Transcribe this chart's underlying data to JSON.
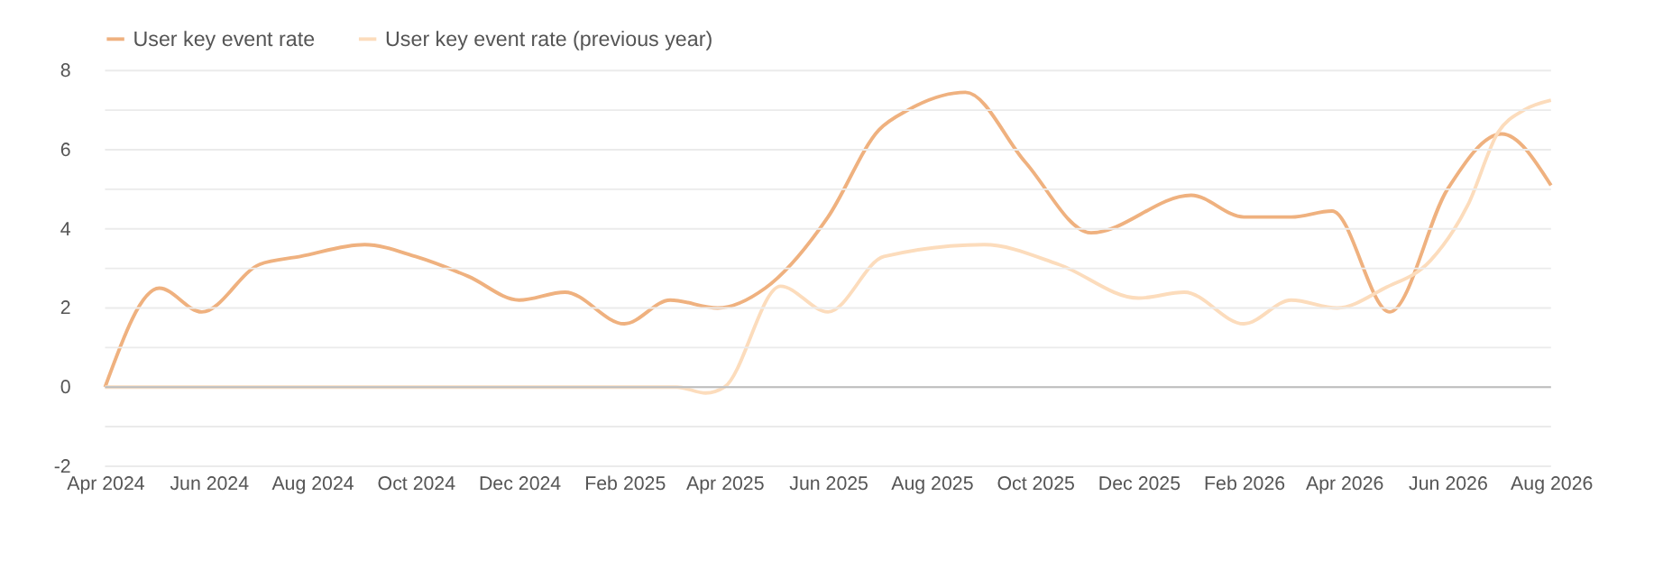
{
  "chart_data": {
    "type": "line",
    "legend": "top left",
    "grid": "y",
    "marker": "none",
    "line_style": "solid",
    "ylim": [
      -2,
      8
    ],
    "yticks": [
      -2,
      {
        "value": -1,
        "label": null
      },
      0,
      {
        "value": 1,
        "label": null
      },
      2,
      {
        "value": 3,
        "label": null
      },
      4,
      {
        "value": 5,
        "label": null
      },
      6,
      {
        "value": 7,
        "label": null
      },
      8
    ],
    "xlim": [
      "2024-04-01",
      "2026-08-01"
    ],
    "xticks": [
      {
        "value": "2024-04",
        "label": "Apr 2024"
      },
      {
        "value": "2024-06",
        "label": "Jun 2024"
      },
      {
        "value": "2024-08",
        "label": "Aug 2024"
      },
      {
        "value": "2024-10",
        "label": "Oct 2024"
      },
      {
        "value": "2024-12",
        "label": "Dec 2024"
      },
      {
        "value": "2025-02",
        "label": "Feb 2025"
      },
      {
        "value": "2025-04",
        "label": "Apr 2025"
      },
      {
        "value": "2025-06",
        "label": "Jun 2025"
      },
      {
        "value": "2025-08",
        "label": "Aug 2025"
      },
      {
        "value": "2025-10",
        "label": "Oct 2025"
      },
      {
        "value": "2025-12",
        "label": "Dec 2025"
      },
      {
        "value": "2026-02",
        "label": "Feb 2026"
      },
      {
        "value": "2026-04",
        "label": "Apr 2026"
      },
      {
        "value": "2026-06",
        "label": "Jun 2026"
      },
      {
        "value": "2026-08",
        "label": "Aug 2026"
      }
    ],
    "ref_lines": [
      {
        "axis": "y",
        "value": 0,
        "color": "#bdbdbd"
      }
    ],
    "series": [
      {
        "name": "User key event rate",
        "color": "#efb17f",
        "x": [
          "2024-04-01",
          "2024-05-03",
          "2024-05-28",
          "2024-07-01",
          "2024-07-25",
          "2024-09-01",
          "2024-10-01",
          "2024-11-01",
          "2024-12-01",
          "2024-12-28",
          "2025-02-01",
          "2025-02-28",
          "2025-03-28",
          "2025-04-25",
          "2025-06-01",
          "2025-07-01",
          "2025-07-18",
          "2025-08-21",
          "2025-09-25",
          "2025-11-03",
          "2026-01-01",
          "2026-02-01",
          "2026-03-01",
          "2026-03-25",
          "2026-04-28",
          "2026-06-01",
          "2026-07-03",
          "2026-08-01"
        ],
        "values": [
          0,
          2.5,
          1.9,
          3.1,
          3.3,
          3.6,
          3.3,
          2.8,
          2.2,
          2.4,
          1.6,
          2.2,
          2.0,
          2.5,
          4.3,
          6.5,
          7.0,
          7.45,
          5.7,
          3.9,
          4.85,
          4.3,
          4.3,
          4.45,
          1.9,
          5.0,
          6.4,
          5.1
        ]
      },
      {
        "name": "User key event rate (previous year)",
        "color": "#fcdcbc",
        "x": [
          "2024-04-01",
          "2024-10-01",
          "2025-03-04",
          "2025-03-21",
          "2025-04-01",
          "2025-05-04",
          "2025-06-01",
          "2025-07-04",
          "2025-09-01",
          "2025-10-15",
          "2025-12-01",
          "2025-12-28",
          "2026-02-01",
          "2026-03-01",
          "2026-03-28",
          "2026-04-25",
          "2026-05-22",
          "2026-06-13",
          "2026-07-01",
          "2026-07-16",
          "2026-08-01"
        ],
        "values": [
          0,
          0,
          0,
          -0.15,
          0,
          2.55,
          1.9,
          3.3,
          3.6,
          3.1,
          2.25,
          2.4,
          1.6,
          2.2,
          2.0,
          2.5,
          3.2,
          4.6,
          6.45,
          7.0,
          7.25
        ]
      }
    ]
  }
}
